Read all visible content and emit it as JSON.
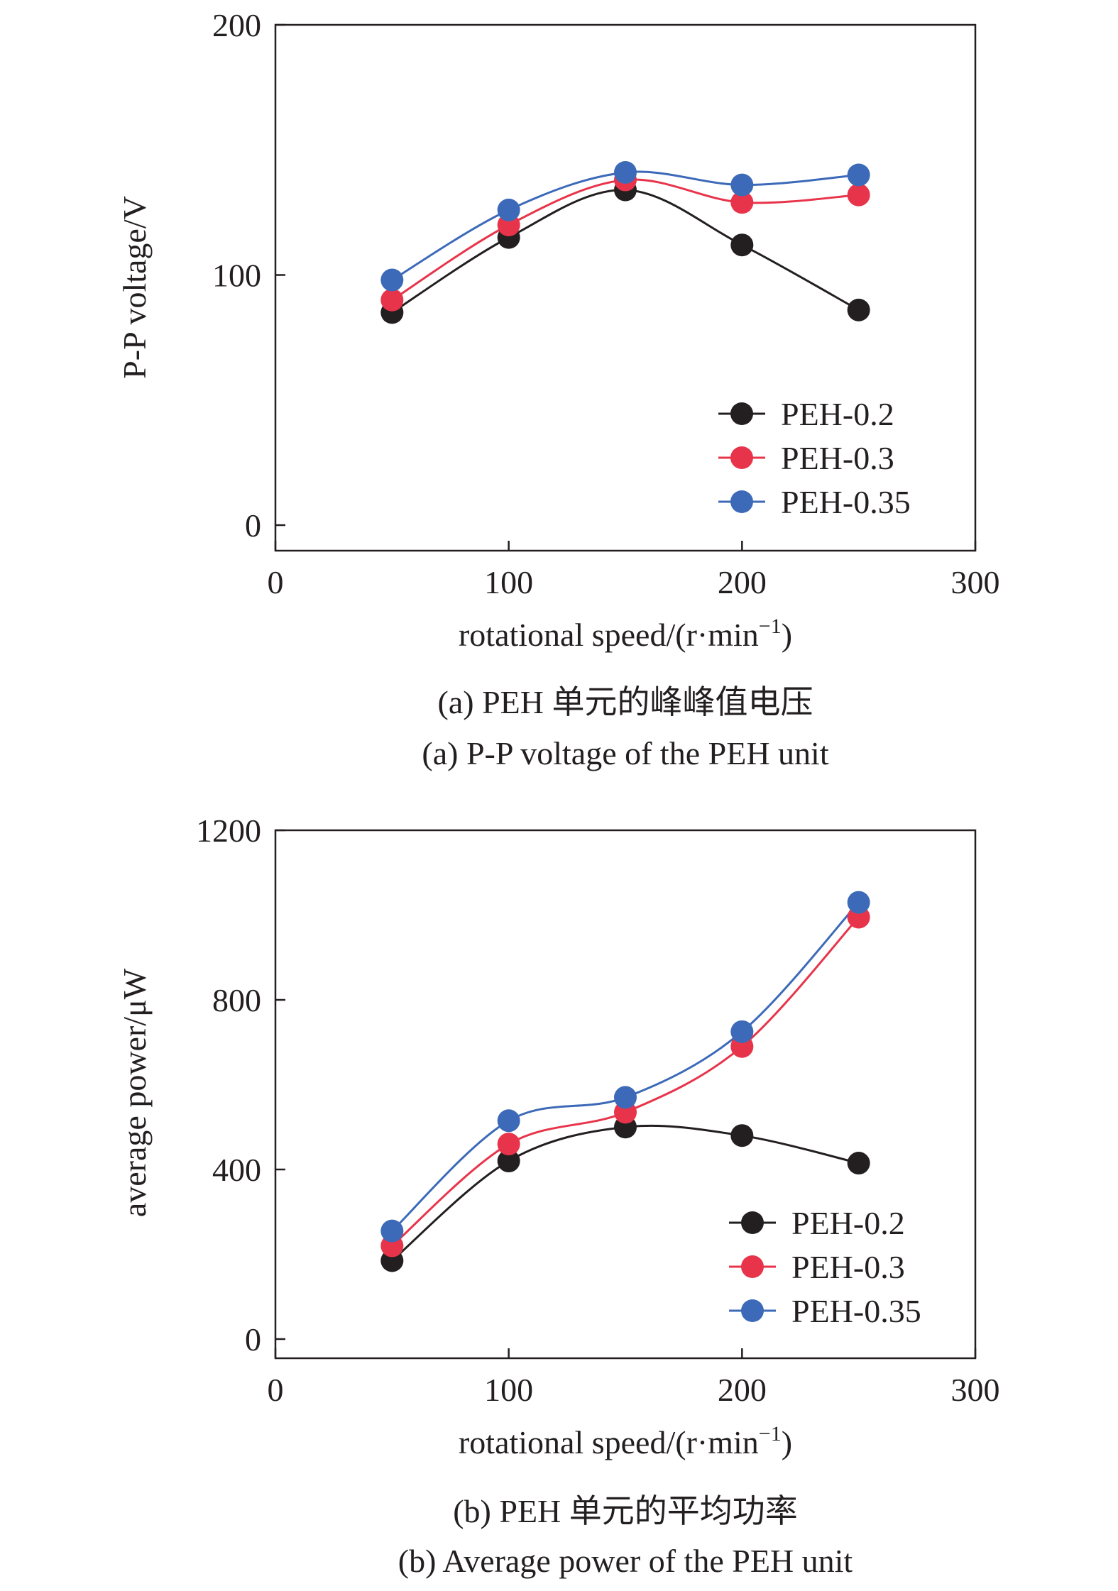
{
  "chart_data": [
    {
      "type": "line",
      "x": [
        50,
        100,
        150,
        200,
        250
      ],
      "xlim": [
        0,
        300
      ],
      "ylim": [
        0,
        200
      ],
      "xticks": [
        "0",
        "100",
        "200",
        "300"
      ],
      "yticks": [
        "0",
        "100",
        "200"
      ],
      "xlabel": "rotational speed/(r·min",
      "xlabel_sup": "−1",
      "xlabel_end": ")",
      "ylabel": "P-P voltage/V",
      "grid": false,
      "legend_position": "bottom-right",
      "series": [
        {
          "name": "PEH-0.2",
          "color": "#231f20",
          "values": [
            85,
            115,
            134,
            112,
            86
          ]
        },
        {
          "name": "PEH-0.3",
          "color": "#e8344a",
          "values": [
            90,
            120,
            138,
            129,
            132
          ]
        },
        {
          "name": "PEH-0.35",
          "color": "#3c6ab8",
          "values": [
            98,
            126,
            141,
            136,
            140
          ]
        }
      ],
      "caption_cn": "(a) PEH 单元的峰峰值电压",
      "caption_en": "(a) P-P voltage of the PEH unit"
    },
    {
      "type": "line",
      "x": [
        50,
        100,
        150,
        200,
        250
      ],
      "xlim": [
        0,
        300
      ],
      "ylim": [
        0,
        1200
      ],
      "xticks": [
        "0",
        "100",
        "200",
        "300"
      ],
      "yticks": [
        "0",
        "400",
        "800",
        "1200"
      ],
      "xlabel": "rotational speed/(r·min",
      "xlabel_sup": "−1",
      "xlabel_end": ")",
      "ylabel": "average power/μW",
      "grid": false,
      "legend_position": "bottom-right",
      "series": [
        {
          "name": "PEH-0.2",
          "color": "#231f20",
          "values": [
            185,
            420,
            500,
            480,
            415
          ]
        },
        {
          "name": "PEH-0.3",
          "color": "#e8344a",
          "values": [
            220,
            460,
            535,
            690,
            995
          ]
        },
        {
          "name": "PEH-0.35",
          "color": "#3c6ab8",
          "values": [
            255,
            515,
            570,
            725,
            1030
          ]
        }
      ],
      "caption_cn": "(b) PEH 单元的平均功率",
      "caption_en": "(b) Average power of the PEH unit"
    }
  ]
}
